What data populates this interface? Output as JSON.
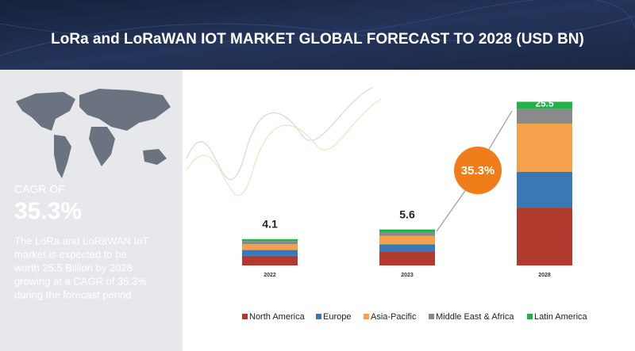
{
  "chart_data": {
    "type": "stacked_bar",
    "title": "LoRa and LoRaWAN IOT MARKET GLOBAL FORECAST TO 2028 (USD BN)",
    "cagr_heading": "CAGR OF",
    "cagr_value": "35.3%",
    "description": [
      "The LoRa and LoRaWAN IoT",
      "market is expected to be",
      "worth 25.5 Billion by 2028",
      "growing at a CAGR of 35.3%",
      "during the forecast period"
    ],
    "annotation": "35.3%",
    "categories": [
      "2022",
      "2023",
      "2028"
    ],
    "totals": [
      4.1,
      5.6,
      25.5
    ],
    "series": [
      {
        "name": "North America",
        "color": "#b03a2e",
        "values": [
          1.5,
          2.1,
          9.0
        ]
      },
      {
        "name": "Europe",
        "color": "#3a78b5",
        "values": [
          0.9,
          1.2,
          5.6
        ]
      },
      {
        "name": "Asia-Pacific",
        "color": "#f5a04a",
        "values": [
          0.9,
          1.3,
          7.5
        ]
      },
      {
        "name": "Middle East & Africa",
        "color": "#8a8a8a",
        "values": [
          0.5,
          0.6,
          2.3
        ]
      },
      {
        "name": "Latin America",
        "color": "#22b04a",
        "values": [
          0.3,
          0.4,
          1.1
        ]
      }
    ],
    "ylim": [
      0,
      26
    ]
  }
}
